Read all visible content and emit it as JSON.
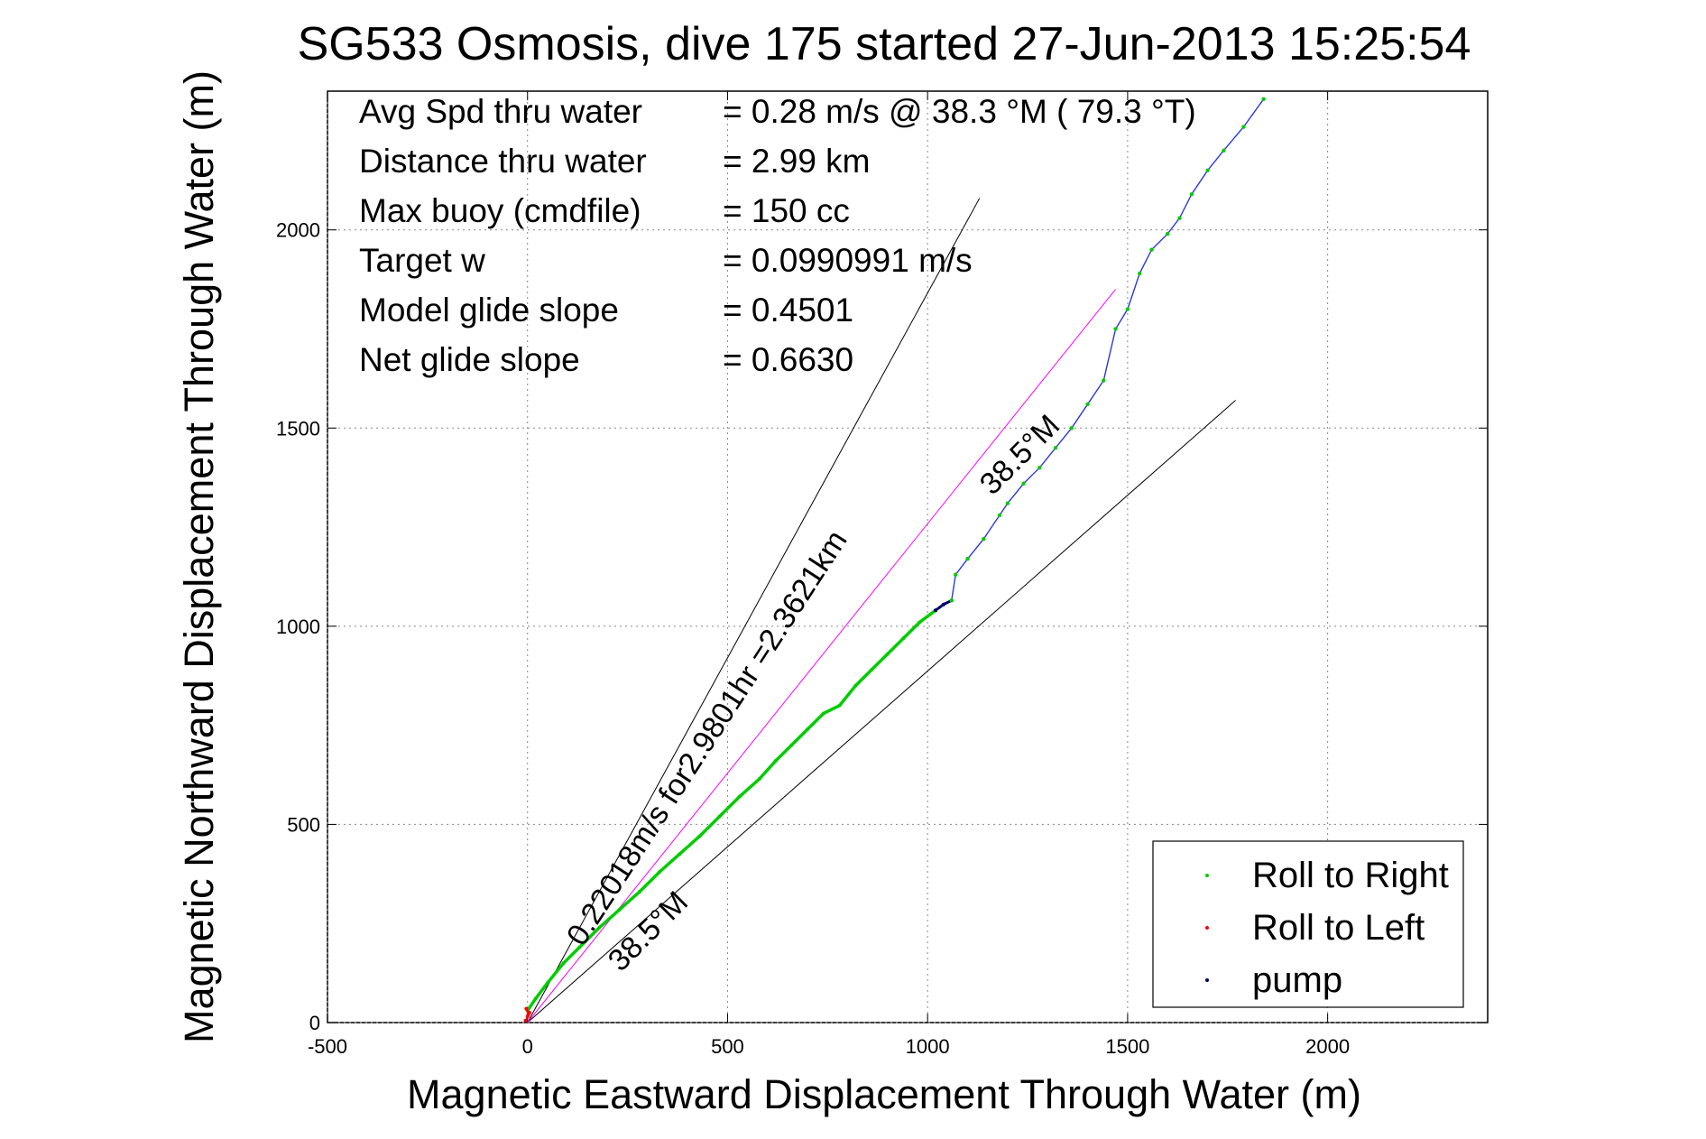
{
  "chart_data": {
    "type": "line",
    "title": "SG533 Osmosis, dive 175 started 27-Jun-2013 15:25:54",
    "xlabel": "Magnetic Eastward Displacement Through Water (m)",
    "ylabel": "Magnetic Northward Displacement Through Water (m)",
    "xlim": [
      -500,
      2400
    ],
    "ylim": [
      0,
      2350
    ],
    "xticks": [
      -500,
      0,
      500,
      1000,
      1500,
      2000
    ],
    "yticks": [
      0,
      500,
      1000,
      1500,
      2000
    ],
    "xtick_labels": [
      "-500",
      "0",
      "500",
      "1000",
      "1500",
      "2000"
    ],
    "ytick_labels": [
      "0",
      "500",
      "1000",
      "1500",
      "2000"
    ],
    "grid": true,
    "legend_position": "bottom-right",
    "stats": [
      {
        "label": "Avg Spd thru water",
        "value": "=  0.28 m/s @  38.3 °M ( 79.3 °T)"
      },
      {
        "label": "Distance thru water",
        "value": "=  2.99 km"
      },
      {
        "label": "Max buoy (cmdfile)",
        "value": "= 150 cc"
      },
      {
        "label": "Target w",
        "value": "= 0.0990991 m/s"
      },
      {
        "label": "Model glide slope",
        "value": "= 0.4501"
      },
      {
        "label": "Net glide slope",
        "value": "= 0.6630"
      }
    ],
    "annotations": {
      "heading_line_label": "0.22018m/s for2.9801hr =2.3621km",
      "heading_upper": "38.5°M",
      "heading_lower": "38.5°M"
    },
    "legend": [
      {
        "name": "Roll to Right",
        "color": "#00cc00"
      },
      {
        "name": "Roll to Left",
        "color": "#ff0000"
      },
      {
        "name": "pump",
        "color": "#000066"
      }
    ],
    "series": [
      {
        "name": "Roll to Right",
        "color": "#00cc00",
        "x": [
          0,
          20,
          50,
          90,
          130,
          180,
          230,
          280,
          330,
          380,
          430,
          480,
          530,
          580,
          620,
          660,
          700,
          740,
          780,
          820,
          860,
          900,
          940,
          980,
          1020
        ],
        "y": [
          30,
          60,
          100,
          150,
          190,
          240,
          285,
          330,
          380,
          425,
          470,
          520,
          570,
          615,
          660,
          700,
          740,
          780,
          800,
          850,
          890,
          930,
          970,
          1010,
          1040
        ]
      },
      {
        "name": "pump",
        "color": "#000066",
        "x": [
          1020,
          1040,
          1060
        ],
        "y": [
          1040,
          1055,
          1065
        ]
      },
      {
        "name": "Roll to Left",
        "color": "#ff0000",
        "x": [
          -5,
          0,
          5,
          -3,
          2
        ],
        "y": [
          5,
          15,
          25,
          35,
          20
        ]
      },
      {
        "name": "track",
        "color": "#2a3ad8",
        "x": [
          1060,
          1070,
          1100,
          1140,
          1180,
          1200,
          1240,
          1280,
          1320,
          1360,
          1400,
          1440,
          1470,
          1500,
          1530,
          1560,
          1600,
          1630,
          1660,
          1700,
          1740,
          1790,
          1840
        ],
        "y": [
          1065,
          1130,
          1170,
          1220,
          1280,
          1310,
          1360,
          1400,
          1450,
          1500,
          1560,
          1620,
          1750,
          1800,
          1890,
          1950,
          1990,
          2030,
          2090,
          2150,
          2200,
          2260,
          2330
        ]
      }
    ],
    "reference_lines": [
      {
        "from": [
          0,
          0
        ],
        "to": [
          1130,
          2080
        ],
        "color": "#000000"
      },
      {
        "from": [
          0,
          0
        ],
        "to": [
          1770,
          1570
        ],
        "color": "#000000"
      },
      {
        "from": [
          0,
          0
        ],
        "to": [
          1470,
          1850
        ],
        "color": "#ff00ff"
      }
    ]
  }
}
